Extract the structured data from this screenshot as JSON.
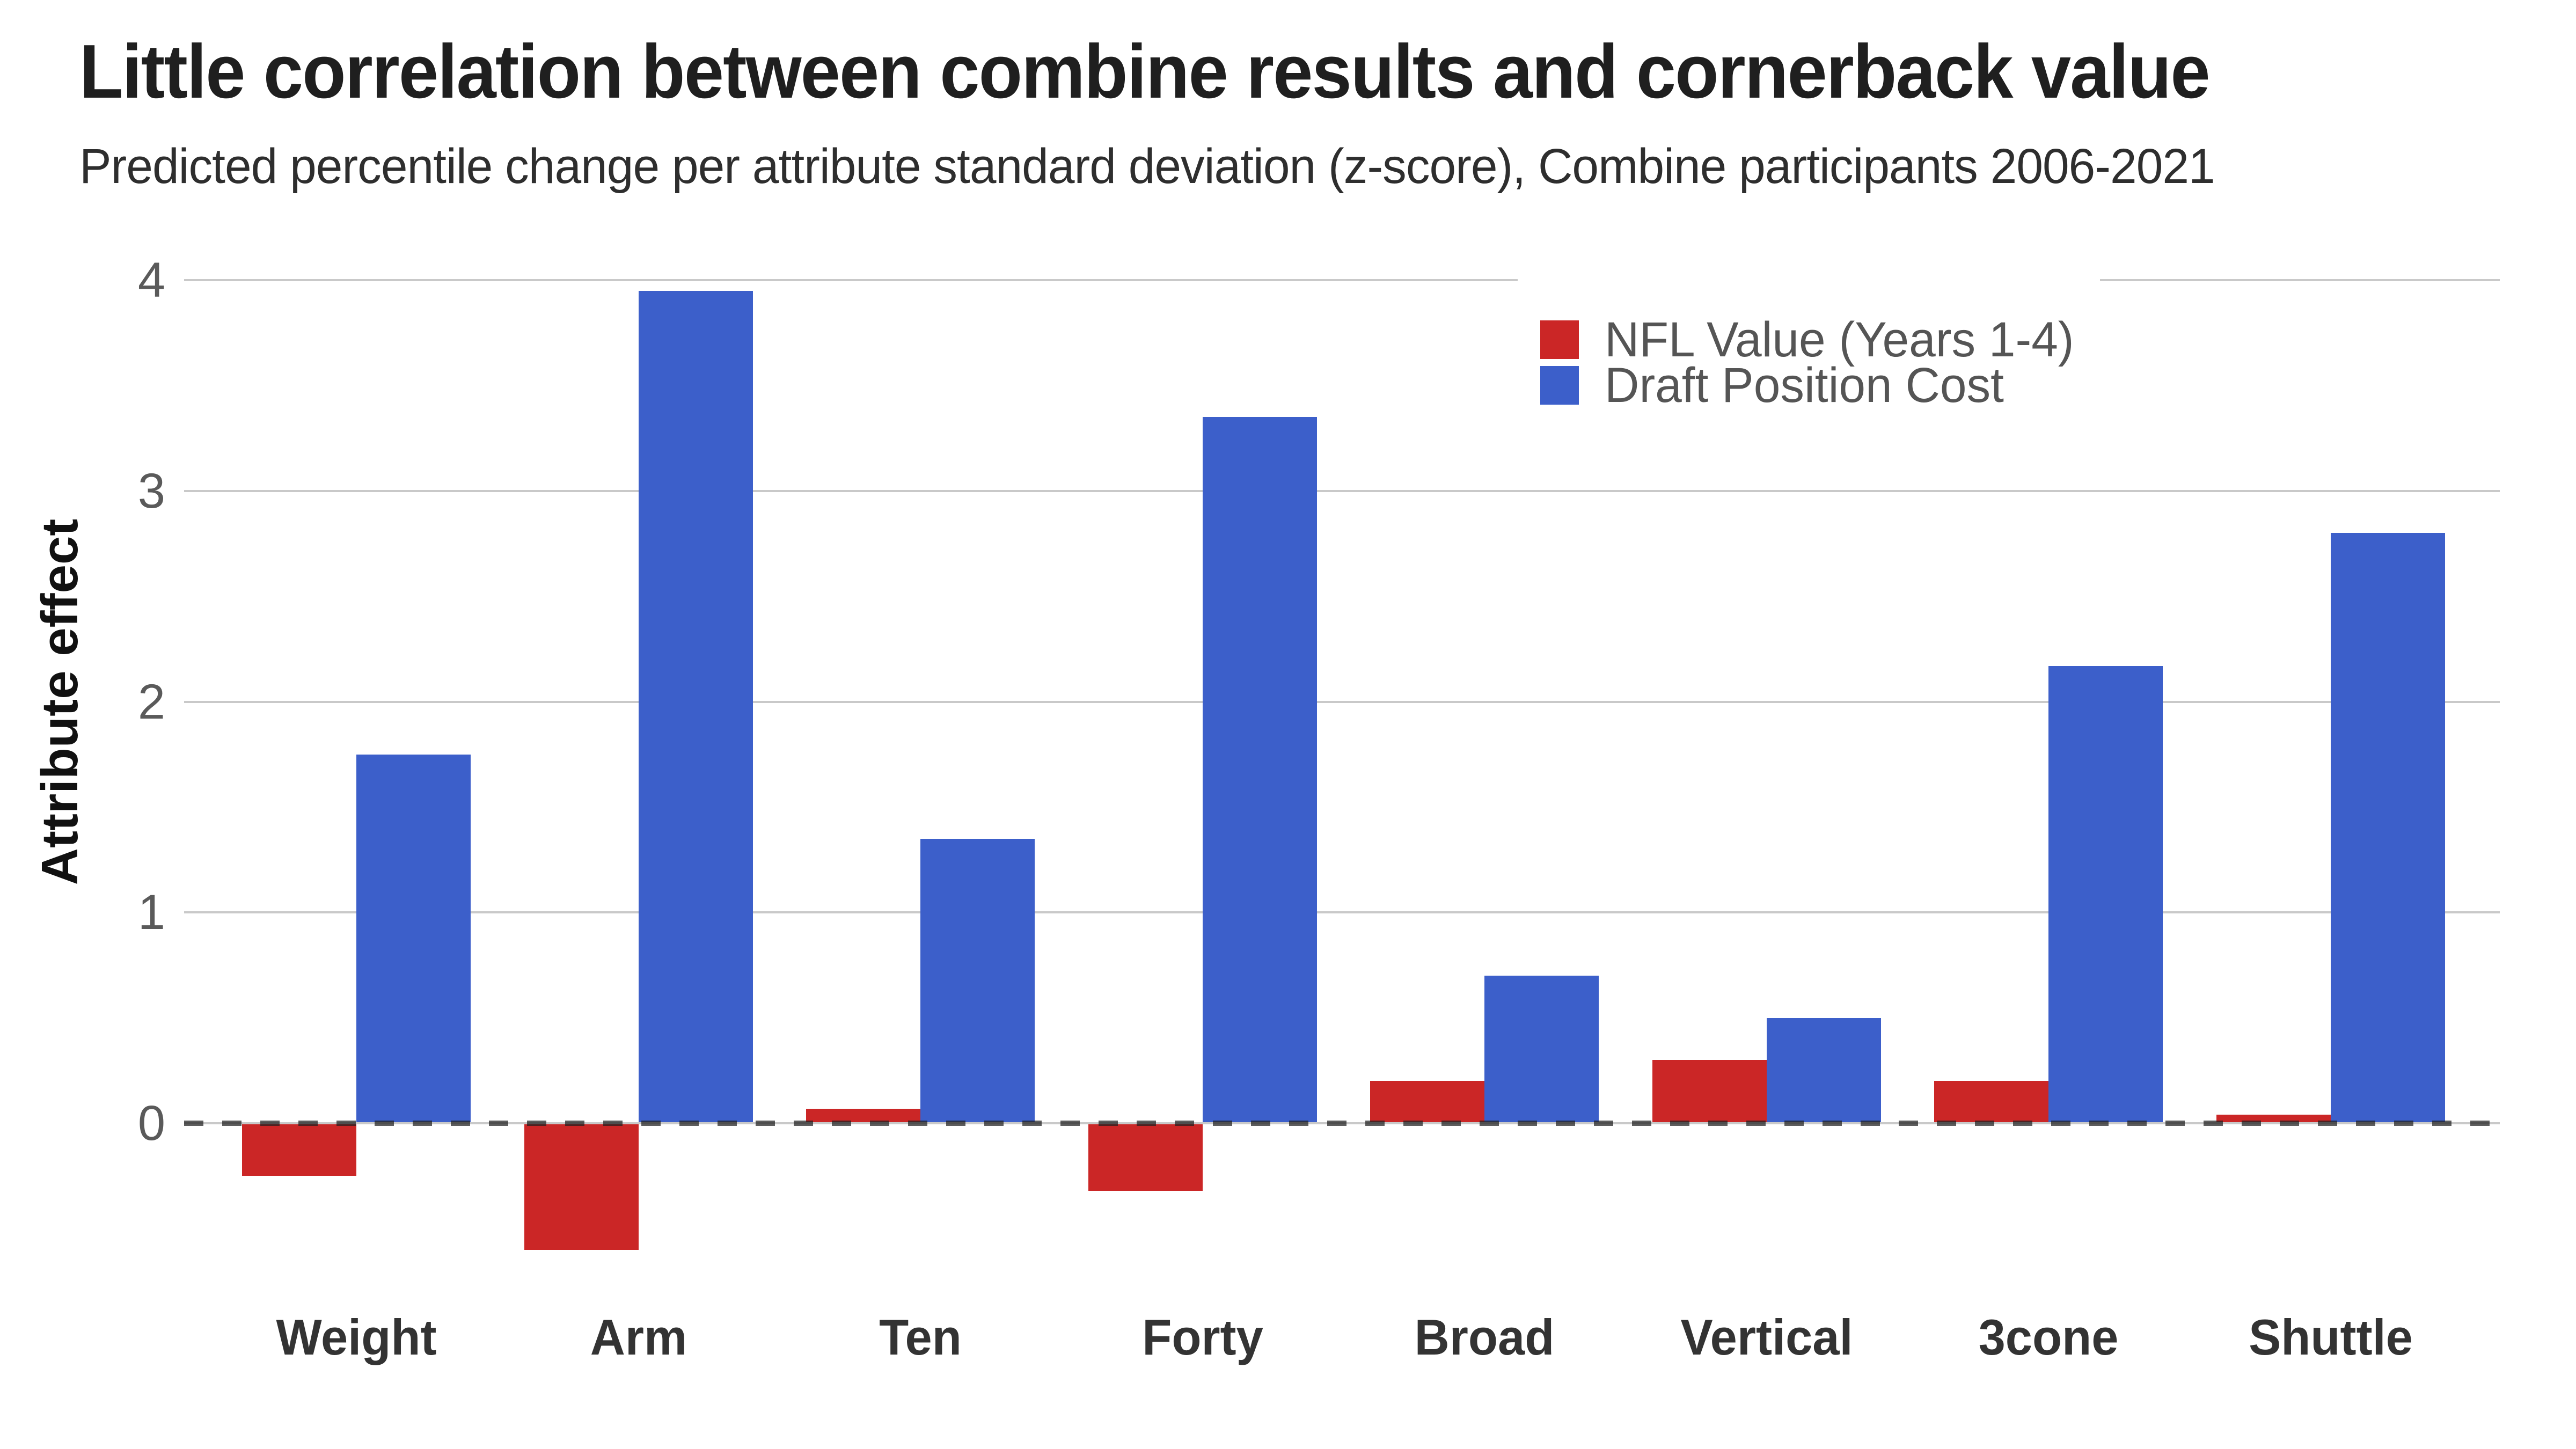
{
  "header": {
    "title": "Little correlation between combine results and cornerback value",
    "subtitle": "Predicted percentile change per attribute standard deviation (z-score), Combine participants 2006-2021"
  },
  "y_axis": {
    "label": "Attribute effect",
    "ticks": [
      "0",
      "1",
      "2",
      "3",
      "4"
    ]
  },
  "legend": {
    "items": [
      {
        "label": "NFL Value (Years 1-4)",
        "color": "#cb2626"
      },
      {
        "label": "Draft Position Cost",
        "color": "#3c5fca"
      }
    ]
  },
  "colors": {
    "background": "#ffffff",
    "grid": "#c9c9c9",
    "zero_dash": "rgba(30,30,30,0.72)",
    "tick_text": "#5a5a5a",
    "axis_title_text": "#111111",
    "category_text": "#333333",
    "legend_text": "#555555",
    "title_text": "#1f1f1f",
    "subtitle_text": "#2e2e2e",
    "nfl_value_red": "#cb2626",
    "draft_cost_blue": "#3c5fca"
  },
  "chart_data": {
    "type": "bar",
    "title": "Little correlation between combine results and cornerback value",
    "subtitle": "Predicted percentile change per attribute standard deviation (z-score), Combine participants 2006-2021",
    "categories": [
      "Weight",
      "Arm",
      "Ten",
      "Forty",
      "Broad",
      "Vertical",
      "3cone",
      "Shuttle"
    ],
    "series": [
      {
        "name": "NFL Value (Years 1-4)",
        "color": "#cb2626",
        "values": [
          -0.25,
          -0.6,
          0.07,
          -0.32,
          0.2,
          0.3,
          0.2,
          0.04
        ]
      },
      {
        "name": "Draft Position Cost",
        "color": "#3c5fca",
        "values": [
          1.75,
          3.95,
          1.35,
          3.35,
          0.7,
          0.5,
          2.17,
          2.8
        ]
      }
    ],
    "xlabel": "",
    "ylabel": "Attribute effect",
    "y_ticks": [
      0,
      1,
      2,
      3,
      4
    ],
    "ylim": [
      -0.75,
      4.15
    ],
    "grid": true,
    "zero_line": "dashed",
    "legend_position": "top-right-inside"
  }
}
